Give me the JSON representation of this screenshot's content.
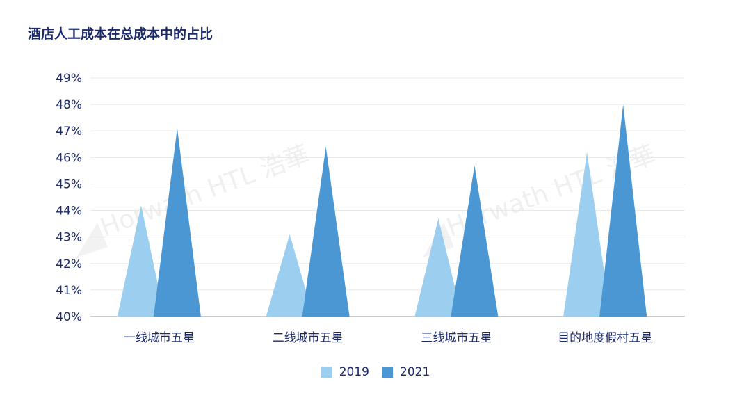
{
  "title": "酒店人工成本在总成本中的占比",
  "watermark": "Horwath HTL 浩華",
  "colors": {
    "series_2019": "#9ccfef",
    "series_2021": "#4a97d4",
    "text": "#1b2a6b",
    "grid": "#e8e8e8",
    "axis": "#999999"
  },
  "chart_data": {
    "type": "bar",
    "title": "酒店人工成本在总成本中的占比",
    "xlabel": "",
    "ylabel": "",
    "ylim": [
      40,
      49
    ],
    "yticks": [
      "40%",
      "41%",
      "42%",
      "43%",
      "44%",
      "45%",
      "46%",
      "47%",
      "48%",
      "49%"
    ],
    "grid": true,
    "legend_position": "bottom-center",
    "categories": [
      "一线城市五星",
      "二线城市五星",
      "三线城市五星",
      "目的地度假村五星"
    ],
    "series": [
      {
        "name": "2019",
        "values": [
          44.2,
          43.1,
          43.7,
          46.2
        ]
      },
      {
        "name": "2021",
        "values": [
          47.1,
          46.4,
          45.7,
          48.0
        ]
      }
    ]
  }
}
